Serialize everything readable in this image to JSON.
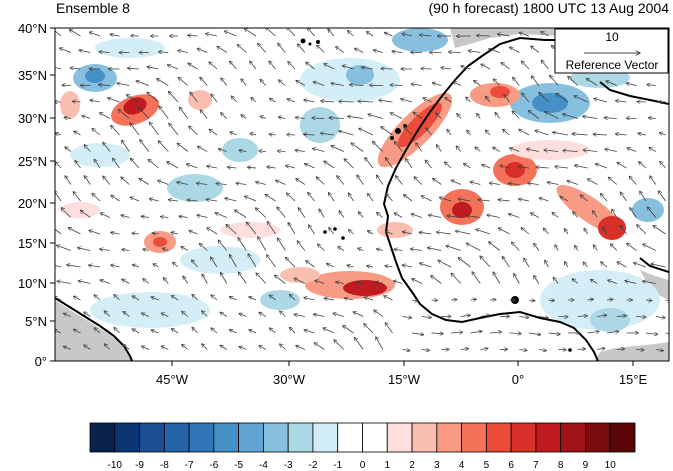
{
  "title_left": "Ensemble 8",
  "title_right": "(90 h forecast) 1800 UTC 13 Aug 2004",
  "reference": {
    "value": "10",
    "label": "Reference Vector"
  },
  "lat_ticks": [
    "0°",
    "5°N",
    "10°N",
    "15°N",
    "20°N",
    "25°N",
    "30°N",
    "35°N",
    "40°N"
  ],
  "lon_ticks": [
    "45°W",
    "30°W",
    "15°W",
    "0°",
    "15°E"
  ],
  "colorbar": {
    "labels": [
      "-10",
      "-9",
      "-8",
      "-7",
      "-6",
      "-5",
      "-4",
      "-3",
      "-2",
      "-1",
      "0",
      "1",
      "2",
      "3",
      "4",
      "5",
      "6",
      "7",
      "8",
      "9",
      "10"
    ],
    "colors": [
      "#08214d",
      "#0b3674",
      "#1a4f94",
      "#2563a8",
      "#2f76b8",
      "#4690c8",
      "#62a5d3",
      "#87c0df",
      "#acd8e5",
      "#d4eef7",
      "#ffffff",
      "#ffffff",
      "#fde0dd",
      "#fbbfaf",
      "#f89b84",
      "#f4725a",
      "#ec4b3a",
      "#d93127",
      "#bf1b20",
      "#a01318",
      "#7a0c10",
      "#5c0508"
    ]
  },
  "map_colors": {
    "land_gray": "#c8c8c8",
    "coast": "#000000",
    "arrow": "#404040"
  }
}
